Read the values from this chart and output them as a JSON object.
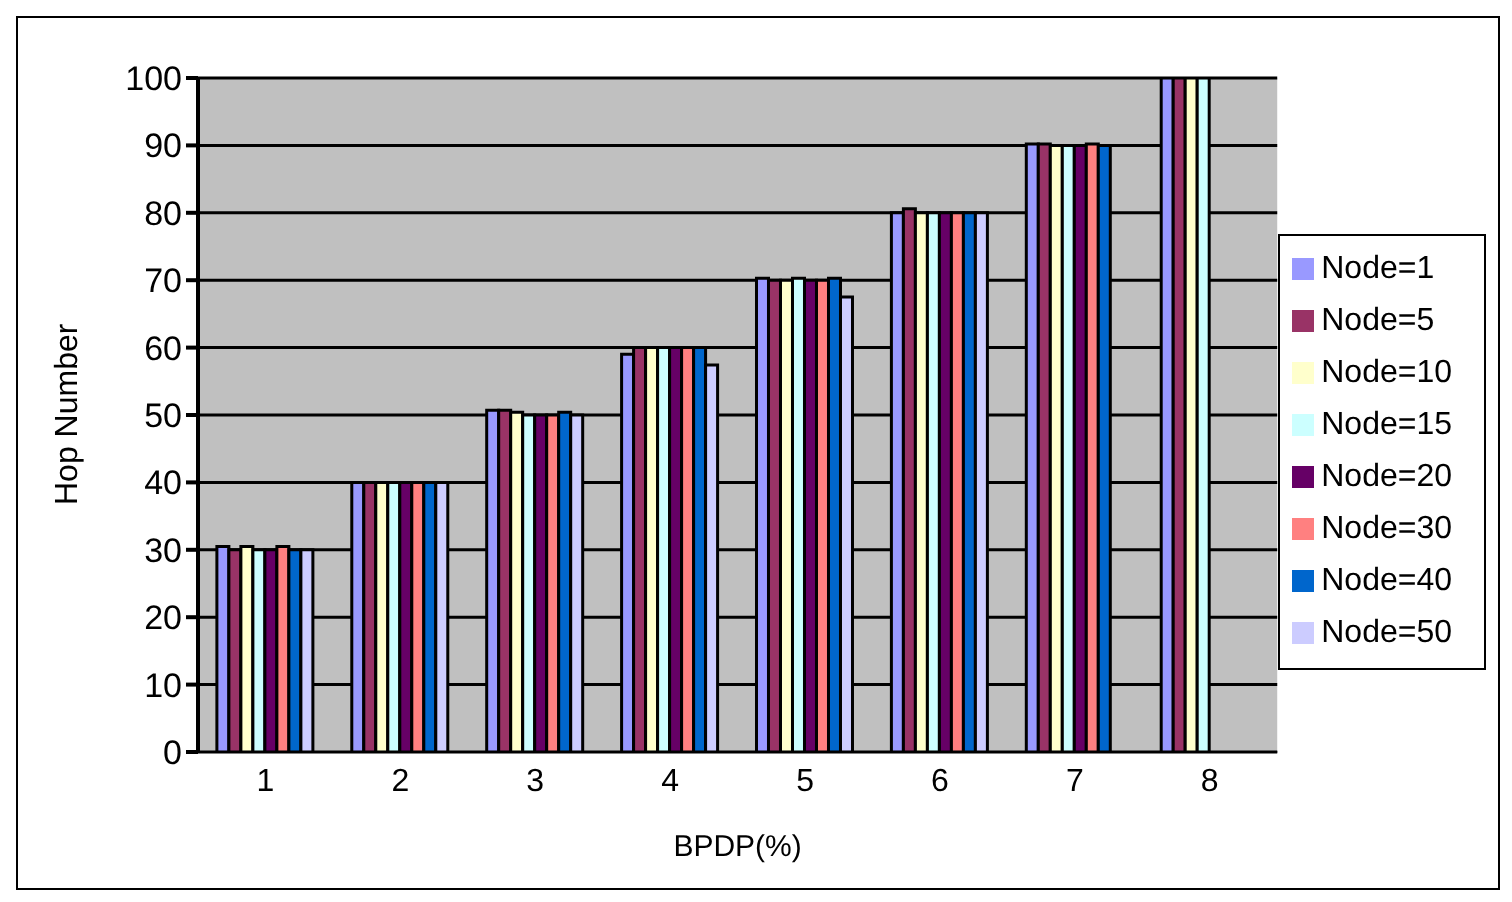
{
  "chart_data": {
    "type": "bar",
    "xlabel": "BPDP(%)",
    "ylabel": "Hop Number",
    "categories": [
      "1",
      "2",
      "3",
      "4",
      "5",
      "6",
      "7",
      "8"
    ],
    "series": [
      {
        "name": "Node=1",
        "color": "#9999ff",
        "values": [
          30.5,
          40,
          50.7,
          59,
          70.3,
          80,
          90.2,
          100
        ]
      },
      {
        "name": "Node=5",
        "color": "#993366",
        "values": [
          30,
          40,
          50.7,
          60,
          70,
          80.6,
          90.2,
          100
        ]
      },
      {
        "name": "Node=10",
        "color": "#ffffcc",
        "values": [
          30.5,
          40,
          50.4,
          60,
          70,
          80,
          90,
          100
        ]
      },
      {
        "name": "Node=15",
        "color": "#ccffff",
        "values": [
          30,
          40,
          50,
          60,
          70.3,
          80,
          90,
          100
        ]
      },
      {
        "name": "Node=20",
        "color": "#660066",
        "values": [
          30,
          40,
          50,
          60,
          70,
          80,
          90,
          null
        ]
      },
      {
        "name": "Node=30",
        "color": "#ff8080",
        "values": [
          30.5,
          40,
          50,
          60,
          70,
          80,
          90.2,
          null
        ]
      },
      {
        "name": "Node=40",
        "color": "#0066cc",
        "values": [
          30,
          40,
          50.4,
          60,
          70.3,
          80,
          90,
          null
        ]
      },
      {
        "name": "Node=50",
        "color": "#ccccff",
        "values": [
          30,
          40,
          50,
          57.4,
          67.5,
          80,
          null,
          null
        ]
      }
    ],
    "ylim": [
      0,
      100
    ],
    "yticks": [
      0,
      10,
      20,
      30,
      40,
      50,
      60,
      70,
      80,
      90,
      100
    ],
    "grid": "y",
    "legend": "right"
  }
}
